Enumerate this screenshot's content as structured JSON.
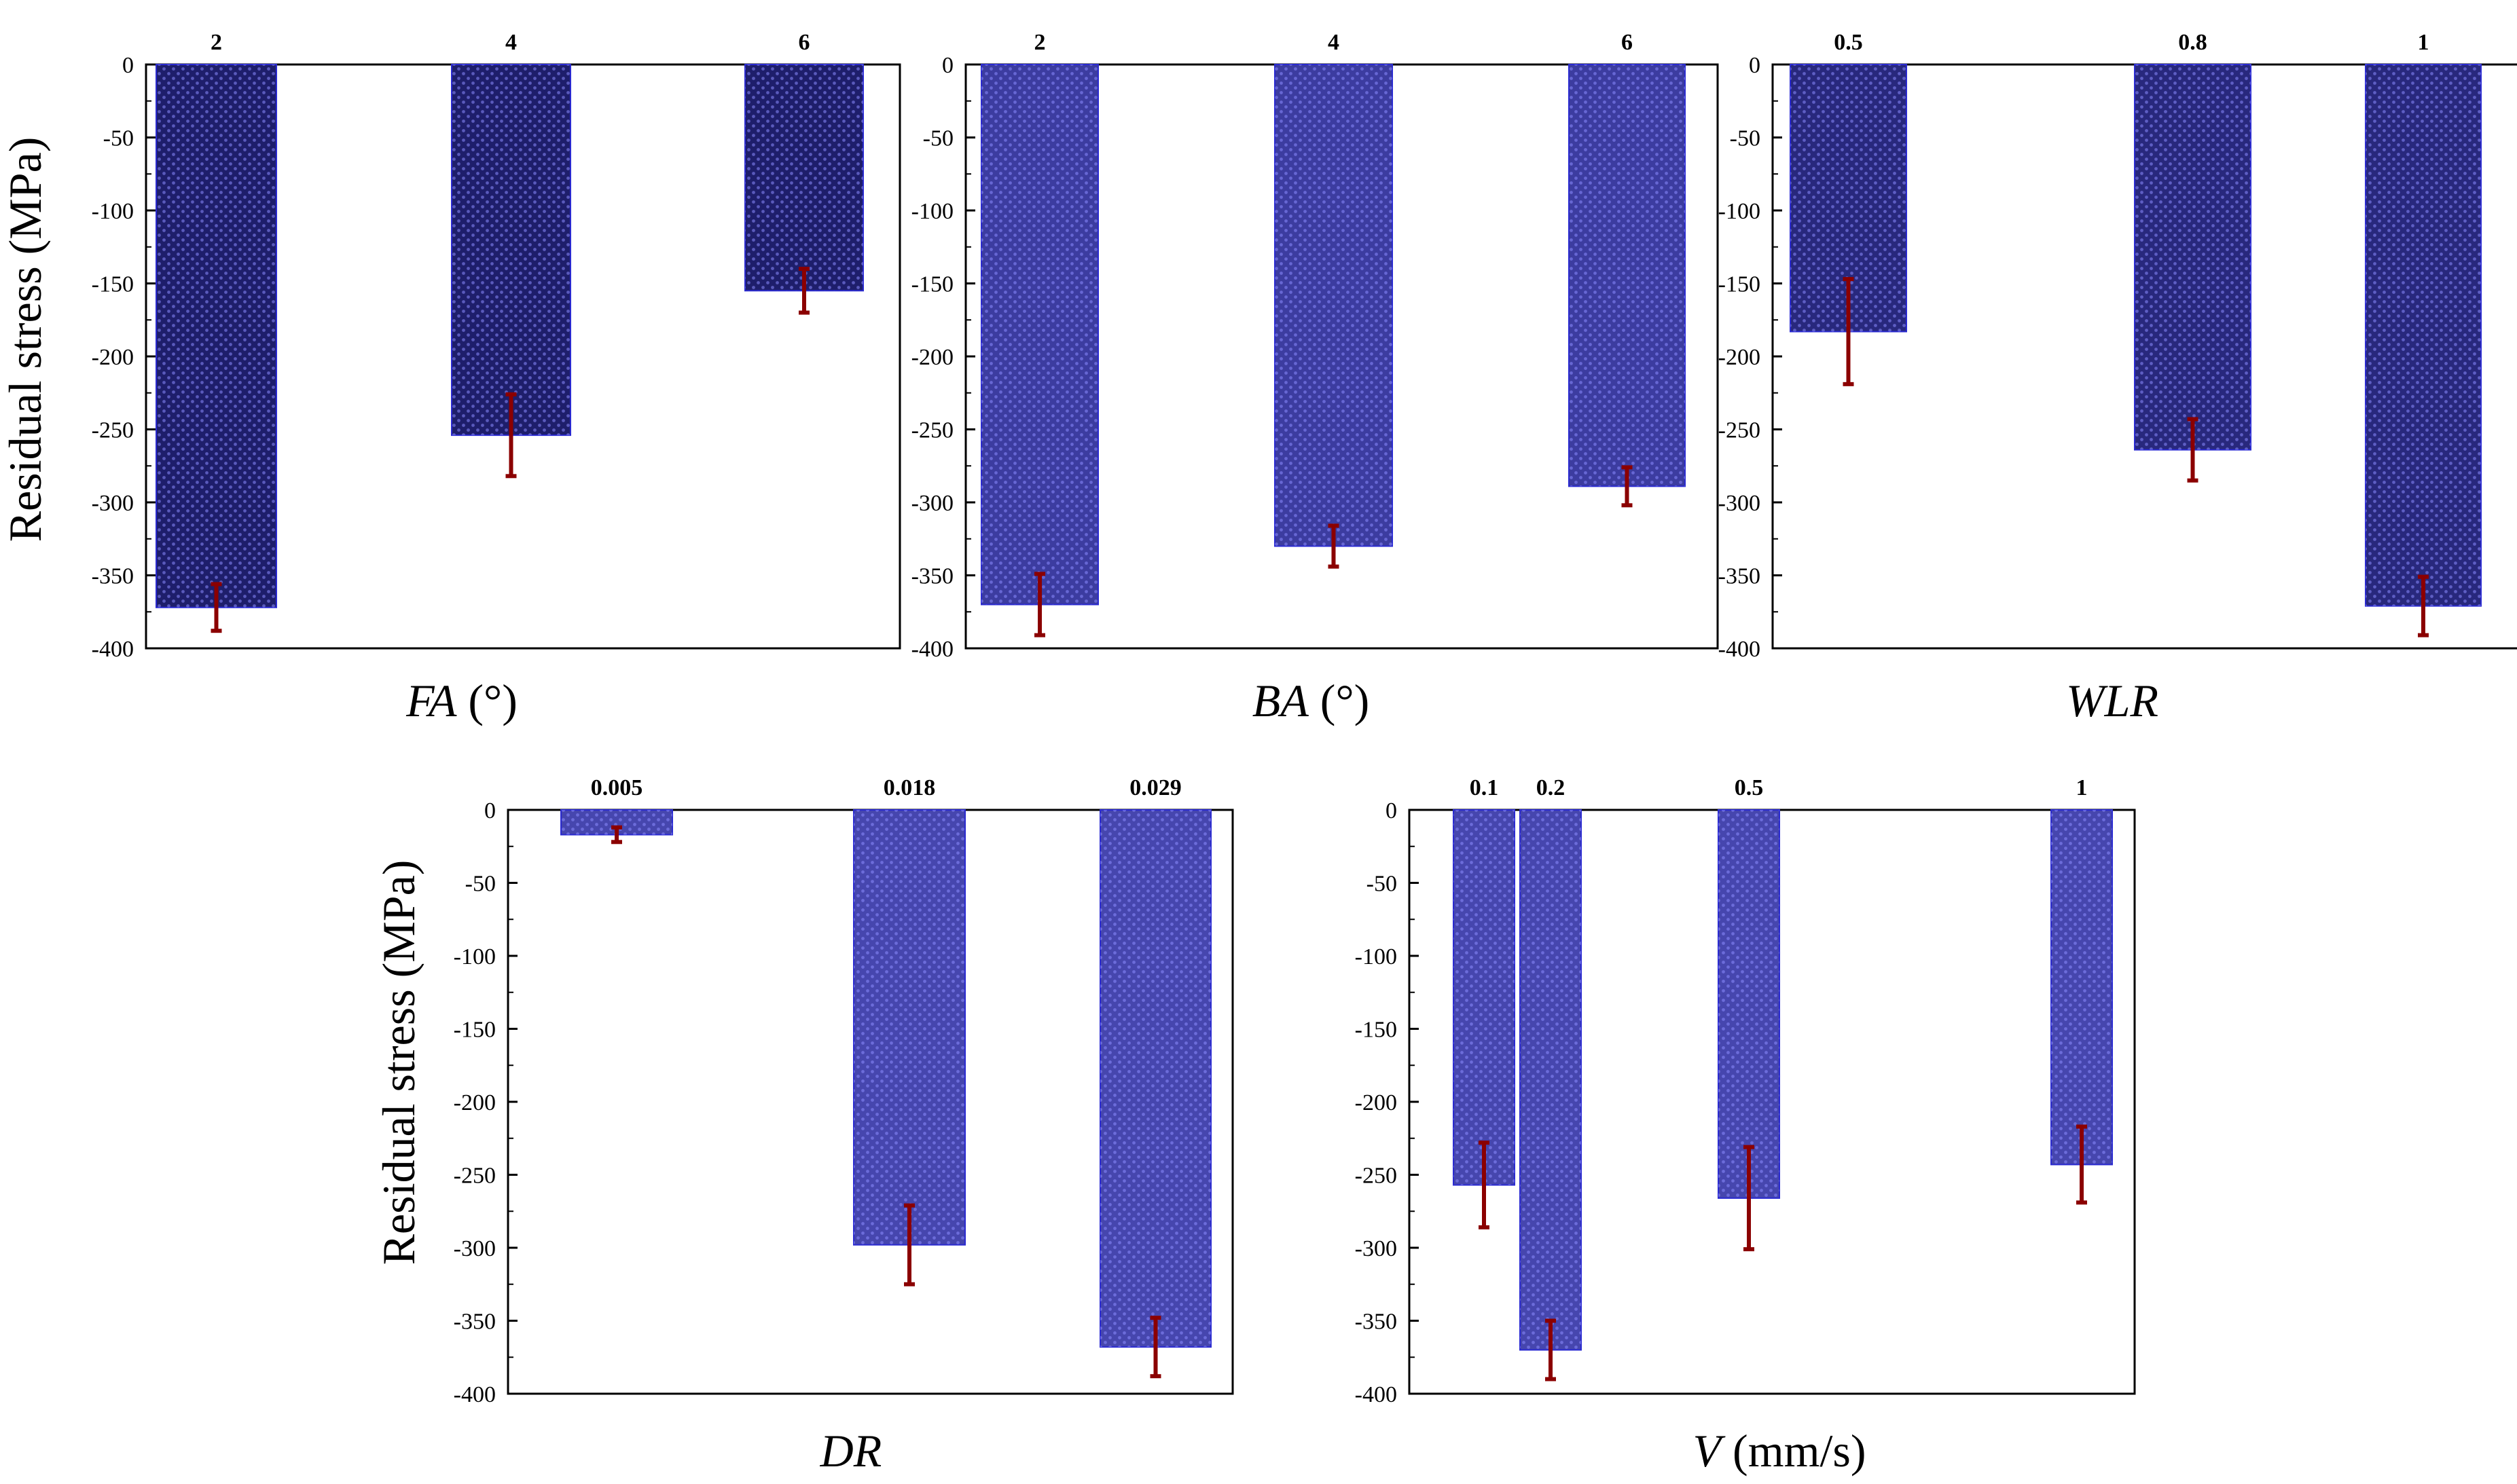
{
  "chart_data": [
    {
      "type": "bar",
      "xlabel_italic": "FA",
      "xlabel_rest": " (°)",
      "ylabel": "Residual stress (MPa)",
      "ylim": [
        -400,
        0
      ],
      "yticks": [
        "0",
        "-50",
        "-100",
        "-150",
        "-200",
        "-250",
        "-300",
        "-350",
        "-400"
      ],
      "categories": [
        "2",
        "4",
        "6"
      ],
      "values": [
        -372,
        -254,
        -155
      ],
      "errors": [
        16,
        28,
        15
      ],
      "fill_color": "#1e1e6b",
      "error_color": "#8b0000"
    },
    {
      "type": "bar",
      "xlabel_italic": "BA",
      "xlabel_rest": " (°)",
      "ylabel": "",
      "ylim": [
        -400,
        0
      ],
      "yticks": [
        "0",
        "-50",
        "-100",
        "-150",
        "-200",
        "-250",
        "-300",
        "-350",
        "-400"
      ],
      "categories": [
        "2",
        "4",
        "6"
      ],
      "values": [
        -370,
        -330,
        -289
      ],
      "errors": [
        21,
        14,
        13
      ],
      "fill_color": "#3c3ca0",
      "error_color": "#8b0000"
    },
    {
      "type": "bar",
      "xlabel_italic": "WLR",
      "xlabel_rest": "",
      "ylabel": "",
      "ylim": [
        -400,
        0
      ],
      "yticks": [
        "0",
        "-50",
        "-100",
        "-150",
        "-200",
        "-250",
        "-300",
        "-350",
        "-400"
      ],
      "categories": [
        "0.5",
        "0.8",
        "1"
      ],
      "values": [
        -183,
        -264,
        -371
      ],
      "errors": [
        36,
        21,
        20
      ],
      "fill_color": "#28287d",
      "error_color": "#8b0000"
    },
    {
      "type": "bar",
      "xlabel_italic": "DR",
      "xlabel_rest": "",
      "ylabel": "Residual stress (MPa)",
      "ylim": [
        -400,
        0
      ],
      "yticks": [
        "0",
        "-50",
        "-100",
        "-150",
        "-200",
        "-250",
        "-300",
        "-350",
        "-400"
      ],
      "categories": [
        "0.005",
        "0.018",
        "0.029"
      ],
      "values": [
        -17,
        -298,
        -368
      ],
      "errors": [
        5,
        27,
        20
      ],
      "fill_color": "#4646ae",
      "error_color": "#8b0000"
    },
    {
      "type": "bar",
      "xlabel_italic": "V",
      "xlabel_rest": " (mm/s)",
      "ylabel": "",
      "ylim": [
        -400,
        0
      ],
      "yticks": [
        "0",
        "-50",
        "-100",
        "-150",
        "-200",
        "-250",
        "-300",
        "-350",
        "-400"
      ],
      "categories": [
        "0.1",
        "0.2",
        "0.5",
        "1"
      ],
      "values": [
        -257,
        -370,
        -266,
        -243
      ],
      "errors": [
        29,
        20,
        35,
        26
      ],
      "fill_color": "#4646ae",
      "error_color": "#8b0000"
    }
  ]
}
